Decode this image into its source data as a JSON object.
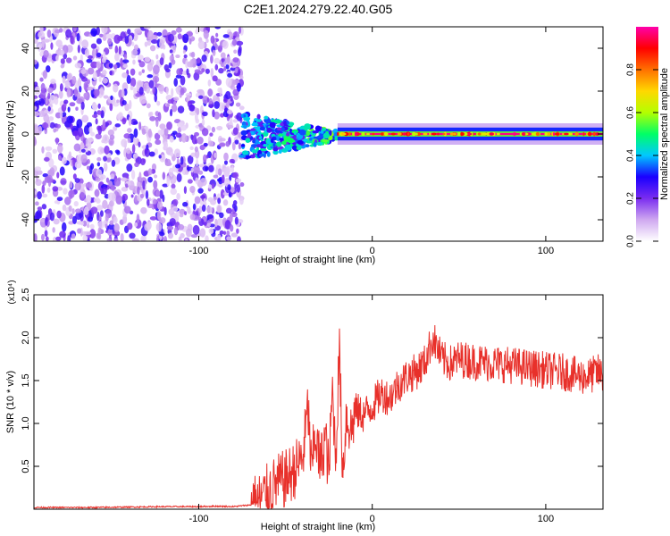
{
  "title": "C2E1.2024.279.22.40.G05",
  "chart_data": [
    {
      "type": "heatmap",
      "title": "C2E1.2024.279.22.40.G05",
      "xlabel": "Height of straight line (km)",
      "ylabel": "Frequency (Hz)",
      "xlim": [
        -195,
        133
      ],
      "ylim": [
        -50,
        50
      ],
      "x_ticks": [
        -100,
        0,
        100
      ],
      "y_ticks": [
        -40,
        -20,
        0,
        20,
        40
      ],
      "grid": false,
      "colorbar": {
        "label": "Normalized spectral amplitude",
        "range": [
          0,
          1
        ],
        "ticks": [
          "0.0",
          "0.2",
          "0.4",
          "0.6",
          "0.8"
        ],
        "colors": [
          "#ffffff",
          "#cfa8f0",
          "#7a2cf0",
          "#1a00ff",
          "#00c8ff",
          "#00ff66",
          "#b4ff00",
          "#ffd800",
          "#ff7000",
          "#ff0000",
          "#ff00aa"
        ]
      },
      "regions": [
        {
          "x_range": [
            -195,
            -75
          ],
          "y_range": [
            -50,
            50
          ],
          "pattern": "scattered noise",
          "amplitude_range": [
            0.05,
            0.3
          ]
        },
        {
          "x_range": [
            -75,
            -20
          ],
          "y_range": [
            -12,
            8
          ],
          "pattern": "converging signal",
          "amplitude_range": [
            0.2,
            0.6
          ]
        },
        {
          "x_range": [
            -20,
            133
          ],
          "y_range": [
            -3,
            3
          ],
          "pattern": "narrow carrier line",
          "amplitude_range": [
            0.6,
            1.0
          ]
        }
      ]
    },
    {
      "type": "line",
      "xlabel": "Height of straight line (km)",
      "ylabel": "SNR (10 * v/v)",
      "y_scale_label": "(x10⁴)",
      "xlim": [
        -195,
        133
      ],
      "ylim": [
        0,
        2.5
      ],
      "x_ticks": [
        -100,
        0,
        100
      ],
      "y_ticks": [
        0.5,
        1.0,
        1.5,
        2.0,
        2.5
      ],
      "y_tick_labels": [
        "0.5",
        "1.0",
        "1.5",
        "2.0",
        "2.5"
      ],
      "grid": false,
      "color": "#e8302a",
      "series": [
        {
          "x": [
            -195,
            -180,
            -160,
            -140,
            -120,
            -110,
            -100,
            -90,
            -80,
            -70,
            -65,
            -60,
            -55,
            -50,
            -45,
            -40,
            -37,
            -35,
            -33,
            -30,
            -27,
            -25,
            -23,
            -21,
            -19,
            -17,
            -15,
            -12,
            -10,
            -5,
            0,
            5,
            10,
            15,
            20,
            25,
            30,
            35,
            40,
            45,
            50,
            60,
            70,
            80,
            90,
            100,
            110,
            120,
            125,
            130,
            133
          ],
          "y": [
            0.02,
            0.02,
            0.02,
            0.025,
            0.03,
            0.03,
            0.03,
            0.035,
            0.03,
            0.05,
            0.1,
            0.2,
            0.3,
            0.35,
            0.45,
            0.6,
            1.2,
            0.4,
            0.9,
            0.5,
            0.85,
            0.4,
            1.4,
            0.6,
            1.9,
            0.4,
            1.1,
            0.9,
            1.15,
            1.1,
            1.2,
            1.35,
            1.3,
            1.45,
            1.55,
            1.6,
            1.7,
            2.0,
            1.75,
            1.7,
            1.75,
            1.72,
            1.7,
            1.68,
            1.65,
            1.62,
            1.6,
            1.55,
            1.55,
            1.6,
            1.55
          ]
        }
      ]
    }
  ]
}
